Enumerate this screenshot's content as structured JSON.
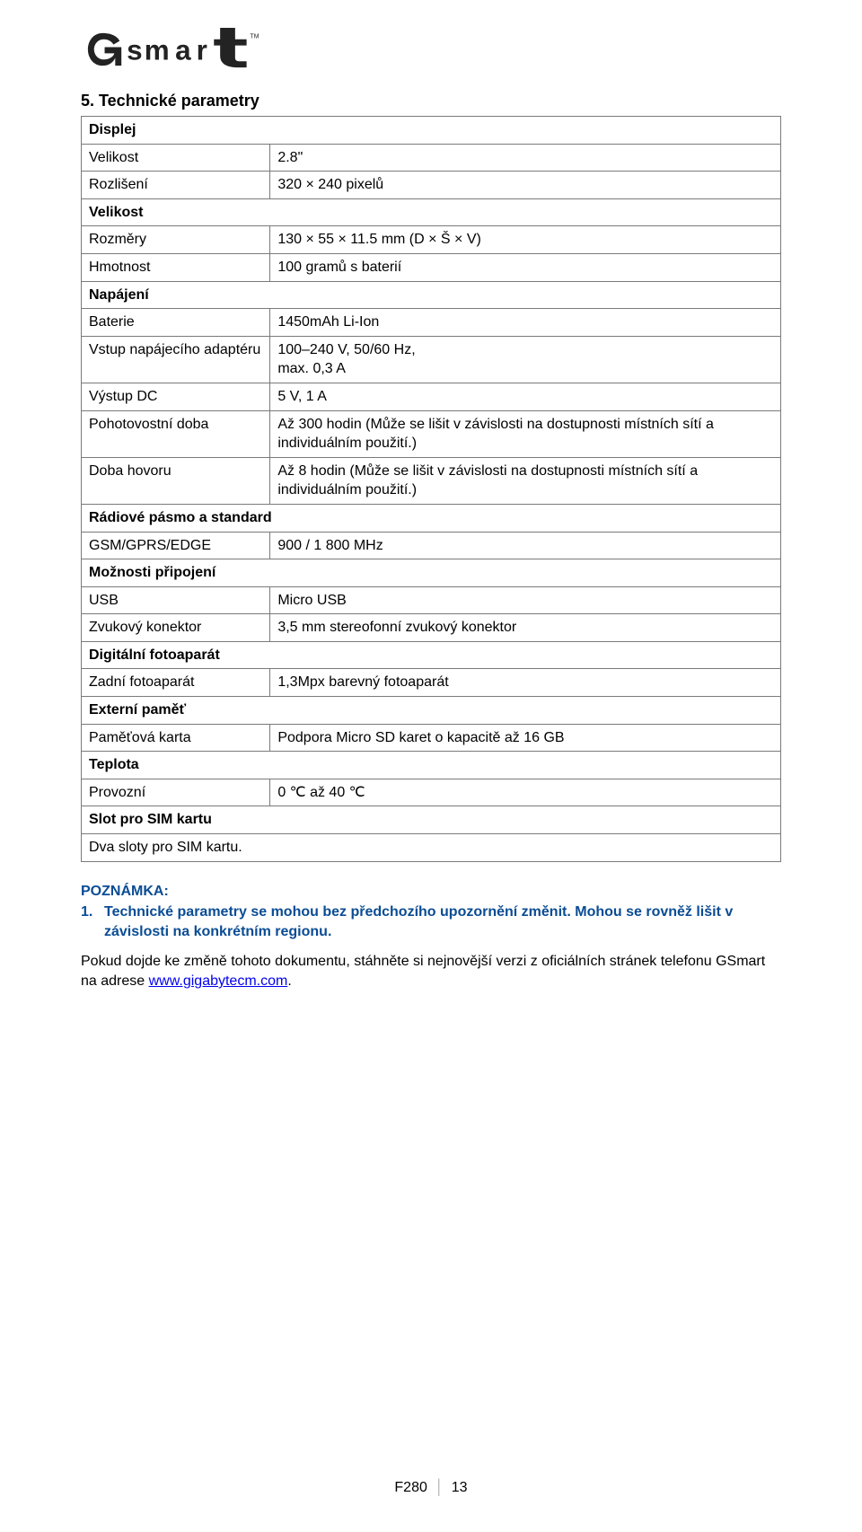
{
  "logo": {
    "text": "GSmart",
    "color": "#232323"
  },
  "section_title": "5. Technické parametry",
  "table": {
    "groups": [
      {
        "header": "Displej",
        "rows": [
          {
            "label": "Velikost",
            "value": "2.8\""
          },
          {
            "label": "Rozlišení",
            "value": "320 × 240 pixelů"
          }
        ]
      },
      {
        "header": "Velikost",
        "rows": [
          {
            "label": "Rozměry",
            "value": "130 × 55 × 11.5 mm (D × Š × V)"
          },
          {
            "label": "Hmotnost",
            "value": "100 gramů s baterií"
          }
        ]
      },
      {
        "header": "Napájení",
        "rows": [
          {
            "label": "Baterie",
            "value": "1450mAh Li-Ion"
          },
          {
            "label": "Vstup napájecího adaptéru",
            "value": "100–240 V, 50/60 Hz,\nmax. 0,3 A"
          },
          {
            "label": "Výstup DC",
            "value": "5 V, 1 A"
          },
          {
            "label": "Pohotovostní doba",
            "value": "Až 300 hodin (Může se lišit v závislosti na dostupnosti místních sítí a individuálním použití.)",
            "justify": true
          },
          {
            "label": "Doba hovoru",
            "value": "Až 8 hodin (Může se lišit v závislosti na dostupnosti místních sítí a individuálním použití.)",
            "justify": true
          }
        ]
      },
      {
        "header": "Rádiové pásmo a standard",
        "rows": [
          {
            "label": "GSM/GPRS/EDGE",
            "value": "900 / 1 800 MHz"
          }
        ]
      },
      {
        "header": "Možnosti připojení",
        "rows": [
          {
            "label": "USB",
            "value": "Micro USB"
          },
          {
            "label": "Zvukový konektor",
            "value": "3,5 mm stereofonní zvukový konektor"
          }
        ]
      },
      {
        "header": "Digitální fotoaparát",
        "rows": [
          {
            "label": "Zadní fotoaparát",
            "value": "1,3Mpx barevný fotoaparát"
          }
        ]
      },
      {
        "header": "Externí paměť",
        "rows": [
          {
            "label": "Paměťová karta",
            "value": "Podpora Micro SD karet o kapacitě až 16 GB"
          }
        ]
      },
      {
        "header": "Teplota",
        "rows": [
          {
            "label": "Provozní",
            "value": "0 ℃ až 40 ℃"
          }
        ]
      },
      {
        "header": "Slot pro SIM kartu",
        "rows": [
          {
            "full": true,
            "value": "Dva sloty pro SIM kartu."
          }
        ]
      }
    ]
  },
  "note": {
    "title": "POZNÁMKA:",
    "item_num": "1.",
    "item_text": "Technické parametry se mohou bez předchozího upozornění změnit. Mohou se rovněž lišit v závislosti na konkrétním regionu."
  },
  "para": {
    "before": "Pokud dojde ke změně tohoto dokumentu, stáhněte si nejnovější verzi z oficiálních stránek telefonu GSmart na adrese ",
    "link": "www.gigabytecm.com",
    "after": "."
  },
  "footer": {
    "model": "F280",
    "page": "13"
  }
}
